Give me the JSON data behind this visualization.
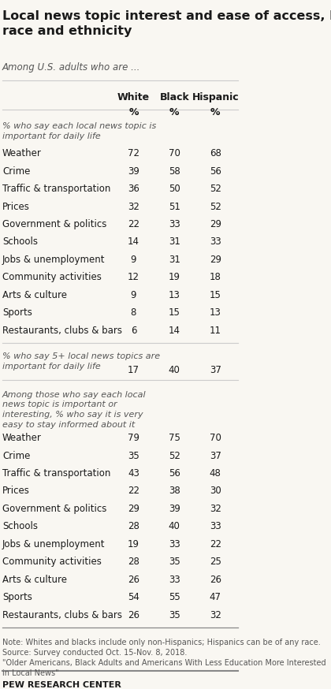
{
  "title": "Local news topic interest and ease of access, by\nrace and ethnicity",
  "subtitle": "Among U.S. adults who are ...",
  "col_headers": [
    "White",
    "Black",
    "Hispanic"
  ],
  "col_subheaders": [
    "%",
    "%",
    "%"
  ],
  "section1_header": "% who say each local news topic is\nimportant for daily life",
  "section1_rows": [
    [
      "Weather",
      72,
      70,
      68
    ],
    [
      "Crime",
      39,
      58,
      56
    ],
    [
      "Traffic & transportation",
      36,
      50,
      52
    ],
    [
      "Prices",
      32,
      51,
      52
    ],
    [
      "Government & politics",
      22,
      33,
      29
    ],
    [
      "Schools",
      14,
      31,
      33
    ],
    [
      "Jobs & unemployment",
      9,
      31,
      29
    ],
    [
      "Community activities",
      12,
      19,
      18
    ],
    [
      "Arts & culture",
      9,
      13,
      15
    ],
    [
      "Sports",
      8,
      15,
      13
    ],
    [
      "Restaurants, clubs & bars",
      6,
      14,
      11
    ]
  ],
  "section2_header": "% who say 5+ local news topics are\nimportant for daily life",
  "section2_row": [
    17,
    40,
    37
  ],
  "section3_header": "Among those who say each local\nnews topic is important or\ninteresting, % who say it is very\neasy to stay informed about it",
  "section3_rows": [
    [
      "Weather",
      79,
      75,
      70
    ],
    [
      "Crime",
      35,
      52,
      37
    ],
    [
      "Traffic & transportation",
      43,
      56,
      48
    ],
    [
      "Prices",
      22,
      38,
      30
    ],
    [
      "Government & politics",
      29,
      39,
      32
    ],
    [
      "Schools",
      28,
      40,
      33
    ],
    [
      "Jobs & unemployment",
      19,
      33,
      22
    ],
    [
      "Community activities",
      28,
      35,
      25
    ],
    [
      "Arts & culture",
      26,
      33,
      26
    ],
    [
      "Sports",
      54,
      55,
      47
    ],
    [
      "Restaurants, clubs & bars",
      26,
      35,
      32
    ]
  ],
  "note": "Note: Whites and blacks include only non-Hispanics; Hispanics can be of any race.\nSource: Survey conducted Oct. 15-Nov. 8, 2018.\n\"Older Americans, Black Adults and Americans With Less Education More Interested\nin Local News\"",
  "footer": "PEW RESEARCH CENTER",
  "bg_color": "#f9f7f2",
  "title_color": "#1a1a1a",
  "subtitle_color": "#555555",
  "header_color": "#1a1a1a",
  "italic_color": "#555555",
  "data_color": "#1a1a1a",
  "note_color": "#555555",
  "line_color_light": "#cccccc",
  "line_color_dark": "#888888"
}
